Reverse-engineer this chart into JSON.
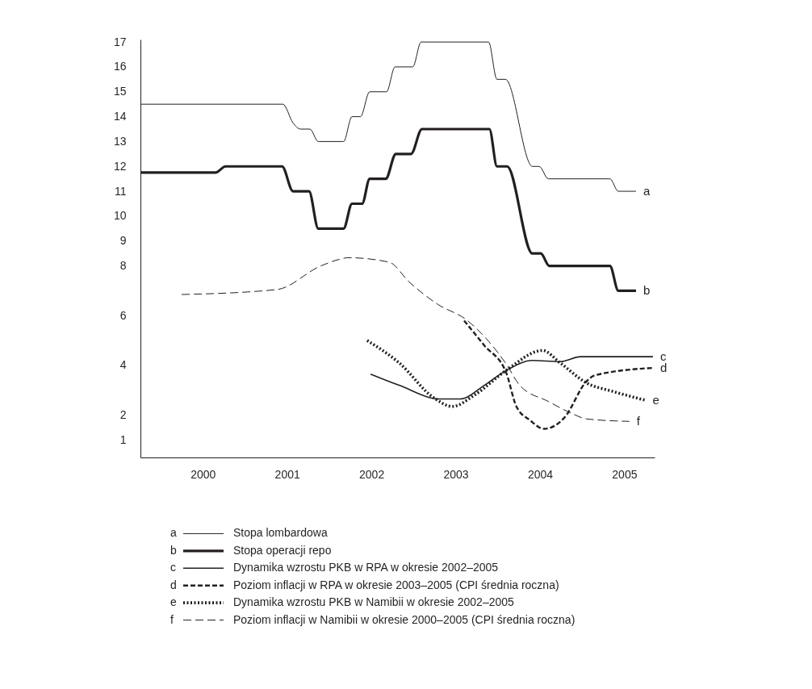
{
  "chart_data": {
    "type": "line",
    "xlim": [
      1999.26,
      2005.36
    ],
    "xticks": [
      2000,
      2001,
      2002,
      2003,
      2004,
      2005
    ],
    "ylim": [
      0.3,
      17.1
    ],
    "yticks": [
      1,
      2,
      4,
      6,
      8,
      9,
      10,
      11,
      12,
      13,
      14,
      15,
      16,
      17
    ],
    "grid": false,
    "legend": "bottom",
    "series": [
      {
        "name": "Stopa lombardowa",
        "color": "#231f20",
        "line_style": "solid",
        "x": [
          1999.26,
          2000.95,
          2001.07,
          2001.16,
          2001.27,
          2001.37,
          2001.67,
          2001.77,
          2001.87,
          2001.98,
          2002.18,
          2002.28,
          2002.49,
          2002.59,
          2003.39,
          2003.49,
          2003.59,
          2003.91,
          2003.99,
          2004.1,
          2004.83,
          2004.93,
          2005.14
        ],
        "values": [
          14.5,
          14.5,
          13.75,
          13.5,
          13.5,
          13.0,
          13.0,
          14.0,
          14.0,
          15.0,
          15.0,
          16.0,
          16.0,
          17.0,
          17.0,
          15.5,
          15.5,
          12.0,
          12.0,
          11.5,
          11.5,
          11.0,
          11.0
        ]
      },
      {
        "name": "Stopa operacji repo",
        "color": "#231f20",
        "line_style": "solid",
        "x": [
          1999.26,
          2000.15,
          2000.27,
          2000.94,
          2001.07,
          2001.26,
          2001.37,
          2001.67,
          2001.77,
          2001.89,
          2001.98,
          2002.17,
          2002.29,
          2002.47,
          2002.6,
          2003.4,
          2003.49,
          2003.61,
          2003.91,
          2004.01,
          2004.11,
          2004.83,
          2004.93,
          2005.14
        ],
        "values": [
          11.75,
          11.75,
          12.0,
          12.0,
          11.0,
          11.0,
          9.5,
          9.5,
          10.5,
          10.5,
          11.5,
          11.5,
          12.5,
          12.5,
          13.5,
          13.5,
          12.0,
          12.0,
          8.5,
          8.5,
          8.0,
          8.0,
          7.0,
          7.0
        ]
      },
      {
        "name": "Dynamika wzrostu PKB w RPA w okresie 2002–2005",
        "color": "#231f20",
        "line_style": "solid",
        "x": [
          2001.99,
          2002.33,
          2002.81,
          2003.05,
          2003.34,
          2003.6,
          2003.91,
          2004.24,
          2004.48,
          2005.34
        ],
        "values": [
          3.65,
          3.2,
          2.65,
          2.65,
          3.2,
          3.8,
          4.2,
          4.15,
          4.35,
          4.35
        ]
      },
      {
        "name": "Poziom inflacji w RPA w okresie 2003–2005 (CPI średnia roczna)",
        "color": "#231f20",
        "line_style": "dashed",
        "x": [
          2003.1,
          2003.34,
          2003.6,
          2003.72,
          2003.88,
          2004.05,
          2004.29,
          2004.55,
          2004.65,
          2005.34
        ],
        "values": [
          5.8,
          4.8,
          3.7,
          2.35,
          1.8,
          1.45,
          1.9,
          3.35,
          3.6,
          3.9
        ]
      },
      {
        "name": "Dynamika wzrostu PKB w Namibii w okresie 2002–2005",
        "color": "#231f20",
        "line_style": "dotted",
        "x": [
          2001.95,
          2002.33,
          2002.74,
          2002.96,
          2003.22,
          2003.6,
          2004.03,
          2004.24,
          2004.55,
          2004.87,
          2005.25
        ],
        "values": [
          5.0,
          4.1,
          2.7,
          2.35,
          2.8,
          3.8,
          4.6,
          4.1,
          3.3,
          2.95,
          2.6
        ]
      },
      {
        "name": "Poziom inflacji w Namibii w okresie 2000–2005 (CPI średnia roczna)",
        "color": "#231f20",
        "line_style": "dashed",
        "x": [
          1999.75,
          2000.88,
          2001.4,
          2001.64,
          2001.72,
          2002.21,
          2002.45,
          2002.79,
          2003.12,
          2003.6,
          2003.76,
          2004.1,
          2004.39,
          2004.55,
          2005.06
        ],
        "values": [
          6.85,
          7.05,
          8.0,
          8.28,
          8.33,
          8.15,
          7.35,
          6.45,
          5.85,
          4.05,
          3.2,
          2.55,
          2.05,
          1.85,
          1.75
        ]
      }
    ],
    "annotations": [
      "a",
      "b",
      "c",
      "d",
      "e",
      "f"
    ]
  }
}
